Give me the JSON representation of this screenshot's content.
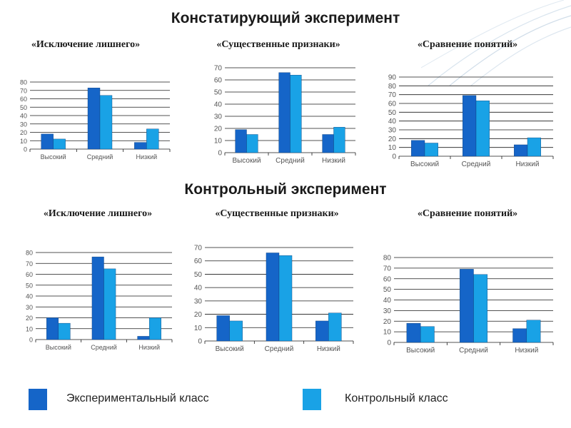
{
  "headings": {
    "ascertaining": "Констатирующий эксперимент",
    "control": "Контрольный эксперимент"
  },
  "colors": {
    "experimental": "#1565c8",
    "control": "#19a2e6",
    "grid": "#1a1a1a",
    "axis_text": "#555555"
  },
  "legend": {
    "experimental_label": "Экспериментальный класс",
    "control_label": "Контрольный класс"
  },
  "chart_data": [
    {
      "type": "bar",
      "title": "«Исключение лишнего»",
      "categories": [
        "Высокий",
        "Средний",
        "Низкий"
      ],
      "ylim": [
        0,
        80
      ],
      "ticks": [
        0,
        10,
        20,
        30,
        40,
        50,
        60,
        70,
        80
      ],
      "series": [
        {
          "name": "Экспериментальный класс",
          "values": [
            18,
            73,
            8
          ]
        },
        {
          "name": "Контрольный класс",
          "values": [
            12,
            64,
            24
          ]
        }
      ]
    },
    {
      "type": "bar",
      "title": "«Существенные признаки»",
      "categories": [
        "Высокий",
        "Средний",
        "Низкий"
      ],
      "ylim": [
        0,
        70
      ],
      "ticks": [
        0,
        10,
        20,
        30,
        40,
        50,
        60,
        70
      ],
      "series": [
        {
          "name": "Экспериментальный класс",
          "values": [
            19,
            66,
            15
          ]
        },
        {
          "name": "Контрольный класс",
          "values": [
            15,
            64,
            21
          ]
        }
      ]
    },
    {
      "type": "bar",
      "title": "«Сравнение понятий»",
      "categories": [
        "Высокий",
        "Средний",
        "Низкий"
      ],
      "ylim": [
        0,
        90
      ],
      "ticks": [
        0,
        10,
        20,
        30,
        40,
        50,
        60,
        70,
        80,
        90
      ],
      "series": [
        {
          "name": "Экспериментальный класс",
          "values": [
            18,
            69,
            13
          ]
        },
        {
          "name": "Контрольный класс",
          "values": [
            15,
            63,
            21
          ]
        }
      ]
    },
    {
      "type": "bar",
      "title": "«Исключение лишнего»",
      "categories": [
        "Высокий",
        "Средний",
        "Низкий"
      ],
      "ylim": [
        0,
        80
      ],
      "ticks": [
        0,
        10,
        20,
        30,
        40,
        50,
        60,
        70,
        80
      ],
      "series": [
        {
          "name": "Экспериментальный класс",
          "values": [
            20,
            76,
            3
          ]
        },
        {
          "name": "Контрольный класс",
          "values": [
            15,
            65,
            20
          ]
        }
      ]
    },
    {
      "type": "bar",
      "title": "«Существенные признаки»",
      "categories": [
        "Высокий",
        "Средний",
        "Низкий"
      ],
      "ylim": [
        0,
        70
      ],
      "ticks": [
        0,
        10,
        20,
        30,
        40,
        50,
        60,
        70
      ],
      "series": [
        {
          "name": "Экспериментальный класс",
          "values": [
            19,
            66,
            15
          ]
        },
        {
          "name": "Контрольный класс",
          "values": [
            15,
            64,
            21
          ]
        }
      ]
    },
    {
      "type": "bar",
      "title": "«Сравнение понятий»",
      "categories": [
        "Высокий",
        "Средний",
        "Низкий"
      ],
      "ylim": [
        0,
        80
      ],
      "ticks": [
        0,
        10,
        20,
        30,
        40,
        50,
        60,
        70,
        80
      ],
      "series": [
        {
          "name": "Экспериментальный класс",
          "values": [
            18,
            69,
            13
          ]
        },
        {
          "name": "Контрольный класс",
          "values": [
            15,
            64,
            21
          ]
        }
      ]
    }
  ]
}
